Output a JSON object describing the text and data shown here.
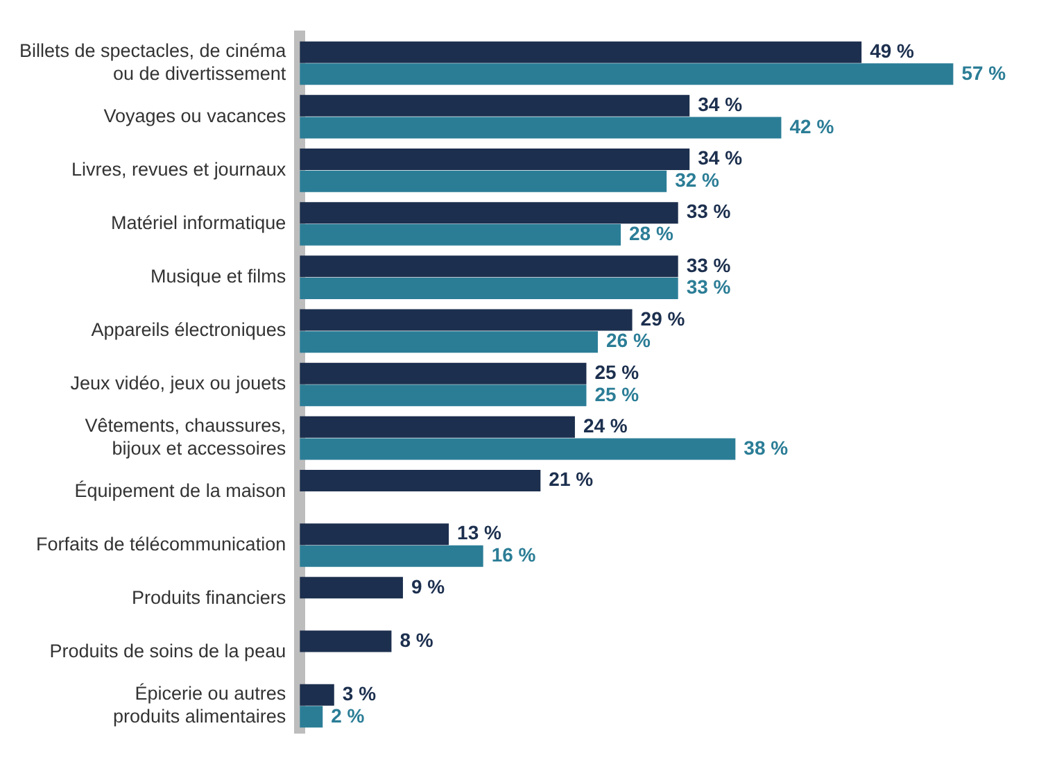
{
  "chart_data": {
    "type": "bar",
    "orientation": "horizontal",
    "categories": [
      "Billets de spectacles, de cinéma\nou de divertissement",
      "Voyages ou vacances",
      "Livres, revues et journaux",
      "Matériel informatique",
      "Musique et films",
      "Appareils électroniques",
      "Jeux vidéo, jeux ou jouets",
      "Vêtements, chaussures,\nbijoux et accessoires",
      "Équipement de la maison",
      "Forfaits de télécommunication",
      "Produits financiers",
      "Produits de soins de la peau",
      "Épicerie ou autres\nproduits alimentaires"
    ],
    "series": [
      {
        "color": "#1c2f4e",
        "values": [
          49,
          34,
          34,
          33,
          33,
          29,
          25,
          24,
          21,
          13,
          9,
          8,
          3
        ],
        "value_labels": [
          "49 %",
          "34 %",
          "34 %",
          "33 %",
          "33 %",
          "29 %",
          "25 %",
          "24 %",
          "21 %",
          "13 %",
          "9 %",
          "8 %",
          "3 %"
        ]
      },
      {
        "color": "#2b7d96",
        "values": [
          57,
          42,
          32,
          28,
          33,
          26,
          25,
          38,
          null,
          16,
          null,
          null,
          2
        ],
        "value_labels": [
          "57 %",
          "42 %",
          "32 %",
          "28 %",
          "33 %",
          "26 %",
          "25 %",
          "38 %",
          null,
          "16 %",
          null,
          null,
          "2 %"
        ]
      }
    ],
    "legend": false
  }
}
